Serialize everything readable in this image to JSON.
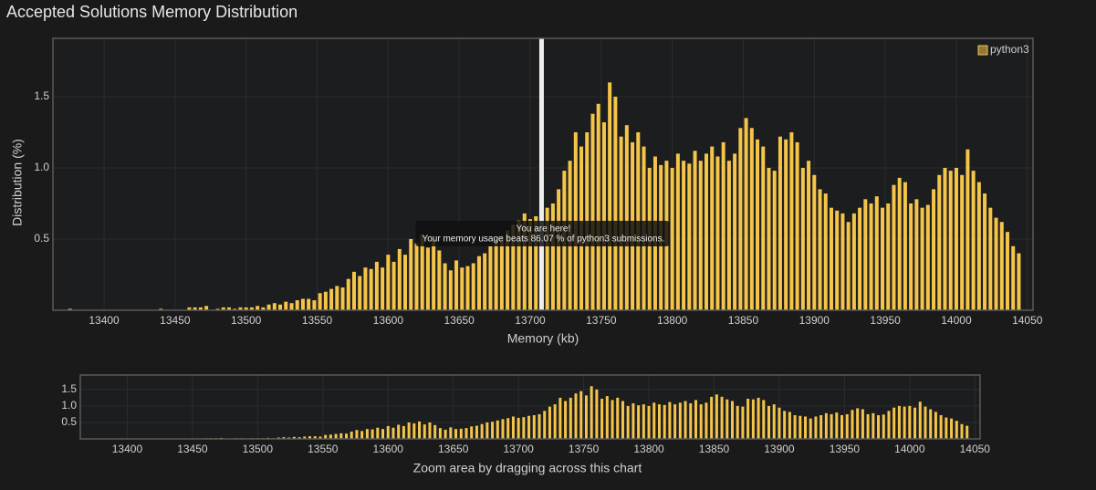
{
  "chart_data": {
    "type": "bar",
    "title": "Accepted Solutions Memory Distribution",
    "x_label": "Memory (kb)",
    "y_label": "Distribution (%)",
    "legend": "top-right",
    "grid": true,
    "xlim": [
      13364,
      14054
    ],
    "ylim": [
      0,
      1.91
    ],
    "xticks": [
      13400,
      13450,
      13500,
      13550,
      13600,
      13650,
      13700,
      13750,
      13800,
      13850,
      13900,
      13950,
      14000,
      14050
    ],
    "yticks": [
      0.5,
      {
        "value": 1,
        "label": "1.0"
      },
      1.5
    ],
    "x": [
      13376,
      13440,
      13460,
      13464,
      13468,
      13472,
      13480,
      13484,
      13488,
      13492,
      13496,
      13500,
      13504,
      13508,
      13512,
      13516,
      13520,
      13524,
      13528,
      13532,
      13536,
      13540,
      13544,
      13548,
      13552,
      13556,
      13560,
      13564,
      13568,
      13572,
      13576,
      13580,
      13584,
      13588,
      13592,
      13596,
      13600,
      13604,
      13608,
      13612,
      13616,
      13620,
      13624,
      13628,
      13632,
      13636,
      13640,
      13644,
      13648,
      13652,
      13656,
      13660,
      13664,
      13668,
      13672,
      13676,
      13680,
      13684,
      13688,
      13692,
      13696,
      13700,
      13704,
      13708,
      13712,
      13716,
      13720,
      13724,
      13728,
      13732,
      13736,
      13740,
      13744,
      13748,
      13752,
      13756,
      13760,
      13764,
      13768,
      13772,
      13776,
      13780,
      13784,
      13788,
      13792,
      13796,
      13800,
      13804,
      13808,
      13812,
      13816,
      13820,
      13824,
      13828,
      13832,
      13836,
      13840,
      13844,
      13848,
      13852,
      13856,
      13860,
      13864,
      13868,
      13872,
      13876,
      13880,
      13884,
      13888,
      13892,
      13896,
      13900,
      13904,
      13908,
      13912,
      13916,
      13920,
      13924,
      13928,
      13932,
      13936,
      13940,
      13944,
      13948,
      13952,
      13956,
      13960,
      13964,
      13968,
      13972,
      13976,
      13980,
      13984,
      13988,
      13992,
      13996,
      14000,
      14004,
      14008,
      14012,
      14016,
      14020,
      14024,
      14028,
      14032,
      14036,
      14040,
      14044
    ],
    "series": [
      {
        "name": "python3",
        "color": "#f5c54a",
        "values": [
          0.01,
          0.01,
          0.02,
          0.02,
          0.02,
          0.03,
          0.01,
          0.02,
          0.02,
          0.01,
          0.02,
          0.02,
          0.02,
          0.03,
          0.02,
          0.04,
          0.05,
          0.04,
          0.06,
          0.05,
          0.07,
          0.08,
          0.08,
          0.07,
          0.12,
          0.13,
          0.15,
          0.17,
          0.16,
          0.22,
          0.27,
          0.24,
          0.3,
          0.29,
          0.34,
          0.3,
          0.39,
          0.34,
          0.43,
          0.39,
          0.5,
          0.47,
          0.53,
          0.44,
          0.5,
          0.42,
          0.33,
          0.28,
          0.35,
          0.3,
          0.31,
          0.33,
          0.38,
          0.4,
          0.45,
          0.5,
          0.52,
          0.56,
          0.6,
          0.63,
          0.68,
          0.64,
          0.66,
          0.7,
          0.72,
          0.75,
          0.85,
          0.98,
          1.05,
          1.25,
          1.15,
          1.25,
          1.38,
          1.45,
          1.32,
          1.6,
          1.5,
          1.22,
          1.3,
          1.18,
          1.25,
          1.15,
          1.0,
          1.08,
          1.02,
          1.05,
          1.0,
          1.1,
          1.05,
          1.03,
          1.12,
          1.05,
          1.1,
          1.15,
          1.08,
          1.18,
          1.05,
          1.1,
          1.28,
          1.35,
          1.28,
          1.2,
          1.15,
          1.0,
          0.98,
          1.22,
          1.2,
          1.25,
          1.18,
          1.0,
          1.05,
          0.95,
          0.85,
          0.82,
          0.72,
          0.7,
          0.68,
          0.62,
          0.68,
          0.72,
          0.78,
          0.75,
          0.8,
          0.72,
          0.75,
          0.88,
          0.93,
          0.9,
          0.75,
          0.78,
          0.72,
          0.74,
          0.85,
          0.95,
          1.0,
          0.98,
          1.0,
          0.95,
          1.13,
          0.98,
          0.9,
          0.82,
          0.72,
          0.65,
          0.62,
          0.55,
          0.45,
          0.4
        ]
      }
    ],
    "marker": {
      "x": 13708,
      "label": "You are here!",
      "text": "Your memory usage beats 86.07 % of python3 submissions."
    },
    "navigator": {
      "ylim": [
        0,
        1.94
      ],
      "yticks": [
        0.5,
        {
          "value": 1,
          "label": "1.0"
        },
        1.5
      ],
      "caption": "Zoom area by dragging across this chart"
    }
  }
}
